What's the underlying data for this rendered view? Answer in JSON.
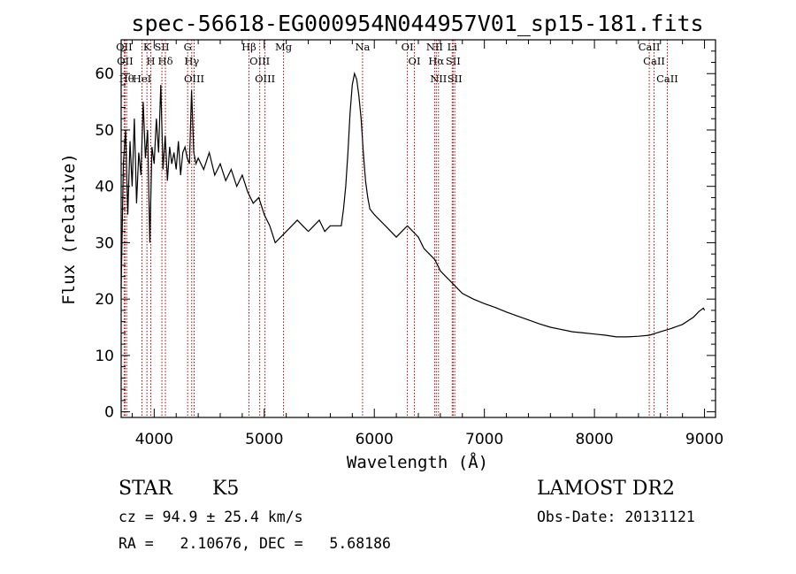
{
  "chart_data": {
    "type": "line",
    "title": "spec-56618-EG000954N044957V01_sp15-181.fits",
    "xlabel": "Wavelength (Å)",
    "ylabel": "Flux (relative)",
    "xlim": [
      3700,
      9100
    ],
    "ylim": [
      -1,
      66
    ],
    "x_ticks": [
      4000,
      5000,
      6000,
      7000,
      8000,
      9000
    ],
    "y_ticks": [
      0,
      10,
      20,
      30,
      40,
      50,
      60
    ],
    "grid": false,
    "legend": "none",
    "series": [
      {
        "color": "#000000",
        "x": [
          3700,
          3720,
          3740,
          3760,
          3780,
          3800,
          3820,
          3840,
          3860,
          3880,
          3900,
          3920,
          3940,
          3960,
          3980,
          4000,
          4020,
          4040,
          4060,
          4080,
          4100,
          4120,
          4140,
          4160,
          4180,
          4200,
          4220,
          4240,
          4260,
          4280,
          4300,
          4320,
          4340,
          4360,
          4380,
          4400,
          4450,
          4500,
          4550,
          4600,
          4650,
          4700,
          4750,
          4800,
          4850,
          4900,
          4950,
          5000,
          5050,
          5100,
          5150,
          5200,
          5250,
          5300,
          5350,
          5400,
          5450,
          5500,
          5550,
          5600,
          5650,
          5700,
          5720,
          5740,
          5760,
          5780,
          5800,
          5820,
          5840,
          5860,
          5880,
          5900,
          5920,
          5940,
          5960,
          6000,
          6050,
          6100,
          6150,
          6200,
          6250,
          6300,
          6350,
          6400,
          6450,
          6500,
          6550,
          6600,
          6650,
          6700,
          6750,
          6800,
          6900,
          7000,
          7100,
          7200,
          7300,
          7400,
          7500,
          7600,
          7700,
          7800,
          7900,
          8000,
          8100,
          8200,
          8300,
          8400,
          8500,
          8600,
          8700,
          8800,
          8900,
          8950,
          8990,
          9000
        ],
        "y": [
          22,
          44,
          50,
          35,
          48,
          40,
          52,
          37,
          46,
          42,
          55,
          45,
          50,
          30,
          47,
          44,
          52,
          46,
          58,
          43,
          49,
          41,
          47,
          44,
          46,
          43,
          48,
          42,
          46,
          47,
          45,
          44,
          57,
          46,
          44,
          45,
          43,
          46,
          42,
          44,
          41,
          43,
          40,
          42,
          39,
          37,
          38,
          35,
          33,
          30,
          31,
          32,
          33,
          34,
          33,
          32,
          33,
          34,
          32,
          33,
          33,
          33,
          36,
          40,
          46,
          53,
          58,
          60,
          59,
          56,
          52,
          46,
          41,
          38,
          36,
          35,
          34,
          33,
          32,
          31,
          32,
          33,
          32,
          31,
          29,
          28,
          27,
          25,
          24,
          23,
          22,
          21,
          20,
          19.2,
          18.5,
          17.7,
          17,
          16.3,
          15.6,
          15,
          14.6,
          14.2,
          14,
          13.8,
          13.6,
          13.3,
          13.3,
          13.4,
          13.6,
          14.2,
          14.8,
          15.5,
          16.8,
          17.8,
          18.4,
          18
        ]
      }
    ],
    "spectral_lines": [
      {
        "x": 3727,
        "labels": [
          "OII"
        ]
      },
      {
        "x": 3735,
        "labels": [
          "OII"
        ]
      },
      {
        "x": 3750,
        "labels": [
          "Hθ"
        ]
      },
      {
        "x": 3889,
        "labels": [
          "HeI"
        ]
      },
      {
        "x": 3934,
        "labels": [
          "K"
        ]
      },
      {
        "x": 3969,
        "labels": [
          "H"
        ]
      },
      {
        "x": 4070,
        "labels": [
          "SII"
        ]
      },
      {
        "x": 4102,
        "labels": [
          "Hδ"
        ]
      },
      {
        "x": 4304,
        "labels": [
          "G"
        ]
      },
      {
        "x": 4341,
        "labels": [
          "Hγ"
        ]
      },
      {
        "x": 4363,
        "labels": [
          "OIII"
        ]
      },
      {
        "x": 4861,
        "labels": [
          "Hβ"
        ]
      },
      {
        "x": 4959,
        "labels": [
          "OIII"
        ]
      },
      {
        "x": 5007,
        "labels": [
          "OIII"
        ]
      },
      {
        "x": 5175,
        "labels": [
          "Mg"
        ]
      },
      {
        "x": 5893,
        "labels": [
          "Na"
        ]
      },
      {
        "x": 6300,
        "labels": [
          "OI"
        ]
      },
      {
        "x": 6364,
        "labels": [
          "OI"
        ]
      },
      {
        "x": 6548,
        "labels": [
          "NII"
        ]
      },
      {
        "x": 6563,
        "labels": [
          "Hα"
        ]
      },
      {
        "x": 6583,
        "labels": [
          "NII"
        ]
      },
      {
        "x": 6708,
        "labels": [
          "Li"
        ]
      },
      {
        "x": 6716,
        "labels": [
          "SII"
        ]
      },
      {
        "x": 6731,
        "labels": [
          "SII"
        ]
      },
      {
        "x": 8498,
        "labels": [
          "CaII"
        ]
      },
      {
        "x": 8542,
        "labels": [
          "CaII"
        ]
      },
      {
        "x": 8662,
        "labels": [
          "CaII"
        ]
      }
    ]
  },
  "info": {
    "class": "STAR",
    "subclass": "K5",
    "survey": "LAMOST DR2",
    "cz": "cz = 94.9 ± 25.4 km/s",
    "obs_date": "Obs-Date: 20131121",
    "coords": "RA =   2.10676, DEC =   5.68186"
  }
}
